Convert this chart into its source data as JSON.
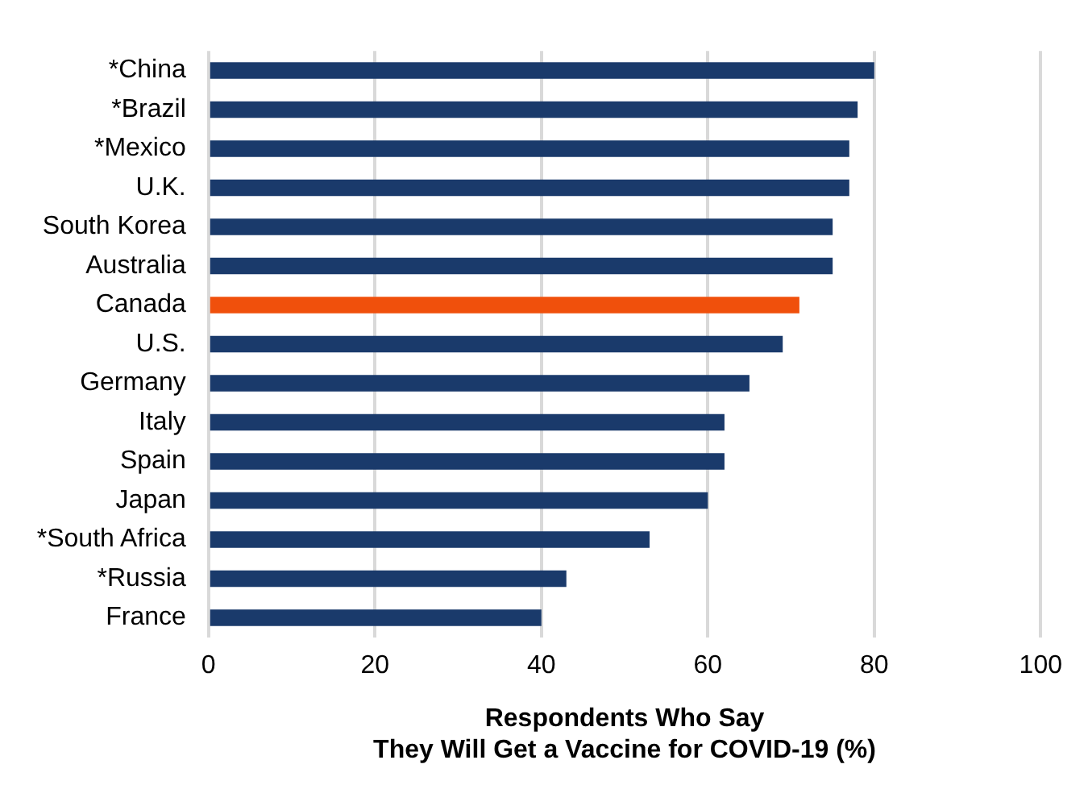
{
  "chart_data": {
    "type": "bar",
    "orientation": "horizontal",
    "categories": [
      "*China",
      "*Brazil",
      "*Mexico",
      "U.K.",
      "South Korea",
      "Australia",
      "Canada",
      "U.S.",
      "Germany",
      "Italy",
      "Spain",
      "Japan",
      "*South Africa",
      "*Russia",
      "France"
    ],
    "values": [
      80,
      78,
      77,
      77,
      75,
      75,
      71,
      69,
      65,
      62,
      62,
      60,
      53,
      43,
      40
    ],
    "colors": [
      "#1a3a6b",
      "#1a3a6b",
      "#1a3a6b",
      "#1a3a6b",
      "#1a3a6b",
      "#1a3a6b",
      "#f0500c",
      "#1a3a6b",
      "#1a3a6b",
      "#1a3a6b",
      "#1a3a6b",
      "#1a3a6b",
      "#1a3a6b",
      "#1a3a6b",
      "#1a3a6b"
    ],
    "xlim": [
      0,
      100
    ],
    "xticks": [
      0,
      20,
      40,
      60,
      80,
      100
    ],
    "xlabel": "Respondents Who Say\nThey Will Get a Vaccine for COVID-19 (%)",
    "grid": "x",
    "legend": false
  }
}
